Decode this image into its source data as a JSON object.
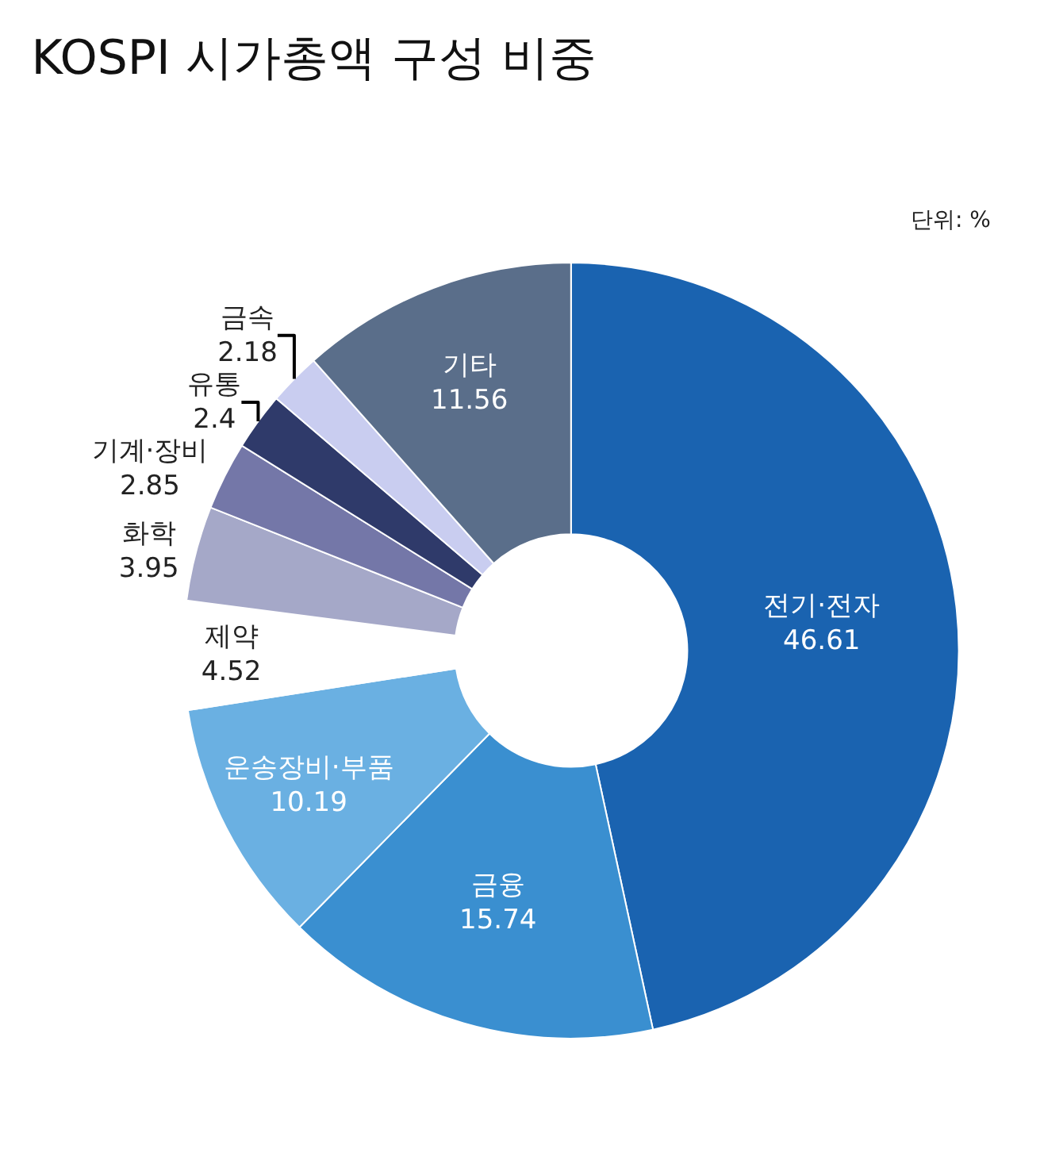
{
  "chart_data": {
    "type": "donut",
    "title": "KOSPI 시가총액 구성 비중",
    "annotations": [
      "단위: %"
    ],
    "categories": [
      "전기·전자",
      "금융",
      "운송장비·부품",
      "제약",
      "화학",
      "기계·장비",
      "유통",
      "금속",
      "기타"
    ],
    "values": [
      46.61,
      15.74,
      10.19,
      4.52,
      3.95,
      2.85,
      2.4,
      2.18,
      11.56
    ],
    "colors": [
      "#1a63b0",
      "#3a8fd0",
      "#6ab0e2",
      "#ffffff",
      "#a5a8c8",
      "#7477a8",
      "#2f3a6a",
      "#c9cdf0",
      "#5a6e8a"
    ],
    "data_labels": true,
    "legend": false
  }
}
